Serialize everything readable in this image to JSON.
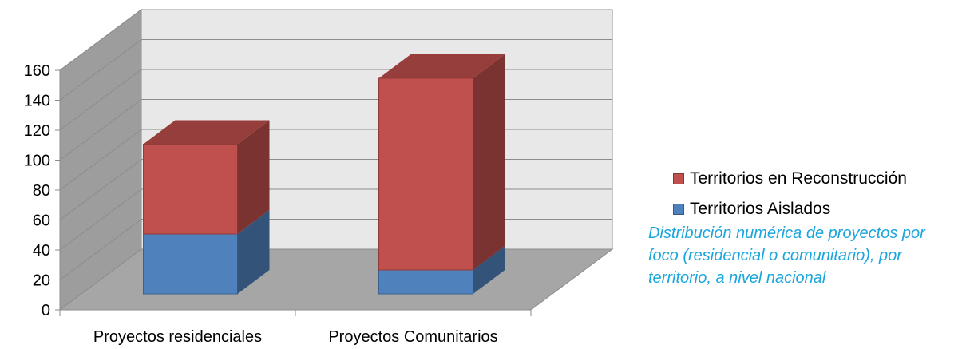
{
  "chart_data": {
    "type": "bar",
    "stacked": true,
    "three_d": true,
    "categories": [
      "Proyectos residenciales",
      "Proyectos Comunitarios"
    ],
    "series": [
      {
        "name": "Territorios Aislados",
        "values": [
          40,
          16
        ],
        "color": "#4f81bd"
      },
      {
        "name": "Territorios en Reconstrucción",
        "values": [
          60,
          128
        ],
        "color": "#c0504d"
      }
    ],
    "yticks": [
      0,
      20,
      40,
      60,
      80,
      100,
      120,
      140,
      160
    ],
    "ylim": [
      0,
      160
    ],
    "grid": true,
    "legend_position": "right",
    "legend_order": [
      "Territorios en Reconstrucción",
      "Territorios Aislados"
    ],
    "title": "",
    "xlabel": "",
    "ylabel": "",
    "annotation": "Distribución numérica  de proyectos por foco (residencial o comunitario), por territorio, a nivel nacional"
  }
}
